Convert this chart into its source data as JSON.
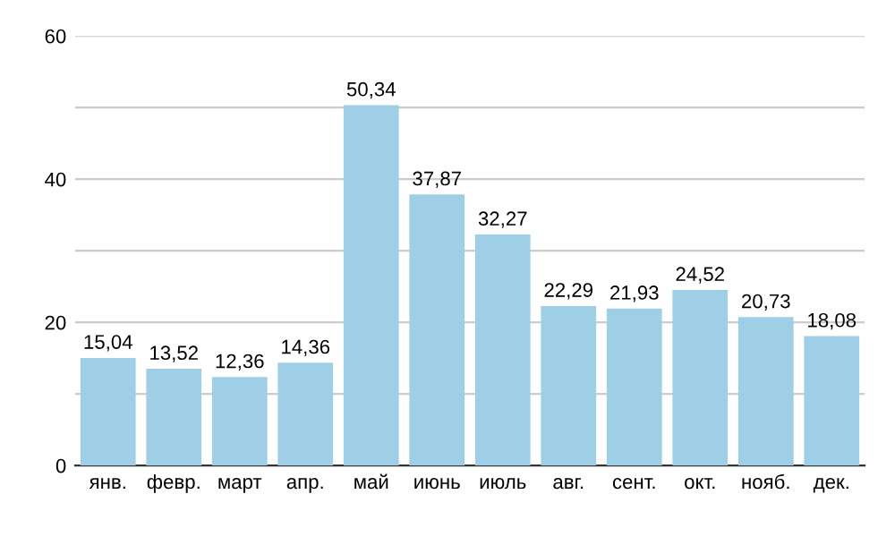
{
  "chart_data": {
    "type": "bar",
    "categories": [
      "янв.",
      "февр.",
      "март",
      "апр.",
      "май",
      "июнь",
      "июль",
      "авг.",
      "сент.",
      "окт.",
      "нояб.",
      "дек."
    ],
    "values": [
      15.04,
      13.52,
      12.36,
      14.36,
      50.34,
      37.87,
      32.27,
      22.29,
      21.93,
      24.52,
      20.73,
      18.08
    ],
    "value_labels": [
      "15,04",
      "13,52",
      "12,36",
      "14,36",
      "50,34",
      "37,87",
      "32,27",
      "22,29",
      "21,93",
      "24,52",
      "20,73",
      "18,08"
    ],
    "color": "#9ecfe6",
    "ylim": [
      0,
      60
    ],
    "yticks": [
      0,
      {
        "value": 10,
        "label": null
      },
      20,
      {
        "value": 30,
        "label": null
      },
      40,
      {
        "value": 50,
        "label": null
      },
      60
    ],
    "grid": "y"
  }
}
